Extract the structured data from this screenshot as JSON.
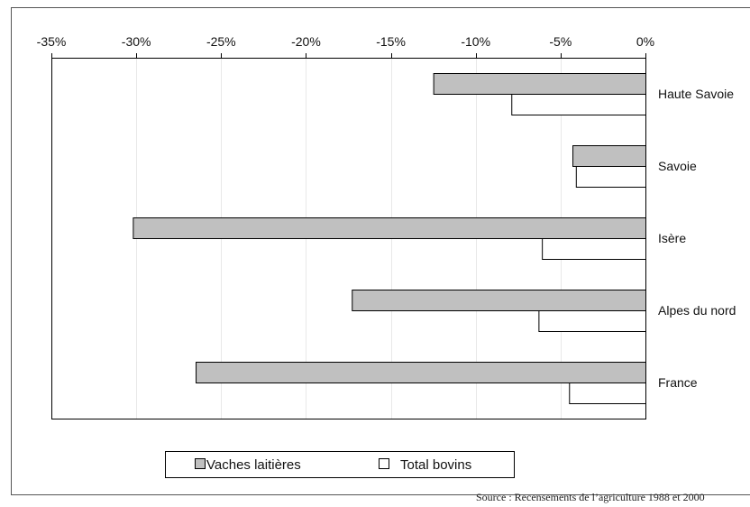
{
  "chart_data": {
    "type": "bar",
    "orientation": "horizontal",
    "categories": [
      "Haute Savoie",
      "Savoie",
      "Isère",
      "Alpes du nord",
      "France"
    ],
    "series": [
      {
        "name": "Vaches laitières",
        "values": [
          -12.5,
          -4.3,
          -30.2,
          -17.3,
          -26.5
        ],
        "color": "#c0c0c0"
      },
      {
        "name": "Total bovins",
        "values": [
          -7.9,
          -4.1,
          -6.1,
          -6.3,
          -4.5
        ],
        "color": "#ffffff"
      }
    ],
    "xlim": [
      -35,
      0
    ],
    "x_ticks": [
      -35,
      -30,
      -25,
      -20,
      -15,
      -10,
      -5,
      0
    ],
    "x_tick_labels": [
      "-35%",
      "-30%",
      "-25%",
      "-20%",
      "-15%",
      "-10%",
      "-5%",
      "0%"
    ],
    "x_axis_position": "top",
    "category_labels_position": "right",
    "legend_position": "bottom",
    "grid": true,
    "source": "Source : Recensements de l’agriculture 1988 et 2000"
  }
}
